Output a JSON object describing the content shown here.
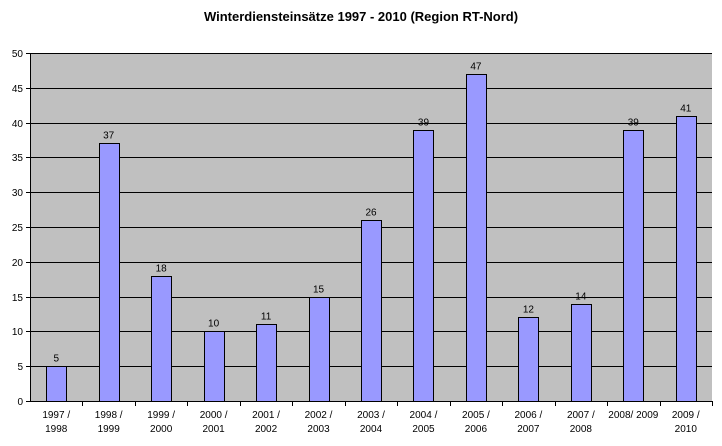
{
  "chart_data": {
    "type": "bar",
    "title": "Winterdiensteinsätze 1997 - 2010 (Region RT-Nord)",
    "xlabel": "",
    "ylabel": "",
    "categories": [
      [
        "1997 /",
        "1998"
      ],
      [
        "1998 /",
        "1999"
      ],
      [
        "1999 /",
        "2000"
      ],
      [
        "2000 /",
        "2001"
      ],
      [
        "2001 /",
        "2002"
      ],
      [
        "2002 /",
        "2003"
      ],
      [
        "2003 /",
        "2004"
      ],
      [
        "2004 /",
        "2005"
      ],
      [
        "2005 /",
        "2006"
      ],
      [
        "2006 /",
        "2007"
      ],
      [
        "2007 /",
        "2008"
      ],
      [
        "2008/ 2009"
      ],
      [
        "2009 /",
        "2010"
      ]
    ],
    "values": [
      5,
      37,
      18,
      10,
      11,
      15,
      26,
      39,
      47,
      12,
      14,
      39,
      41
    ],
    "data_labels": [
      "5",
      "37",
      "18",
      "10",
      "11",
      "15",
      "26",
      "39",
      "47",
      "12",
      "14",
      "39",
      "41"
    ],
    "ylim": [
      0,
      50
    ],
    "y_ticks": [
      "0",
      "5",
      "10",
      "15",
      "20",
      "25",
      "30",
      "35",
      "40",
      "45",
      "50"
    ],
    "grid": true,
    "legend": "none",
    "colors": {
      "bar_fill": "#9999ff",
      "bar_stroke": "#000000",
      "plot_background": "#c0c0c0",
      "gridline": "#000000",
      "page_background": "#ffffff"
    }
  }
}
